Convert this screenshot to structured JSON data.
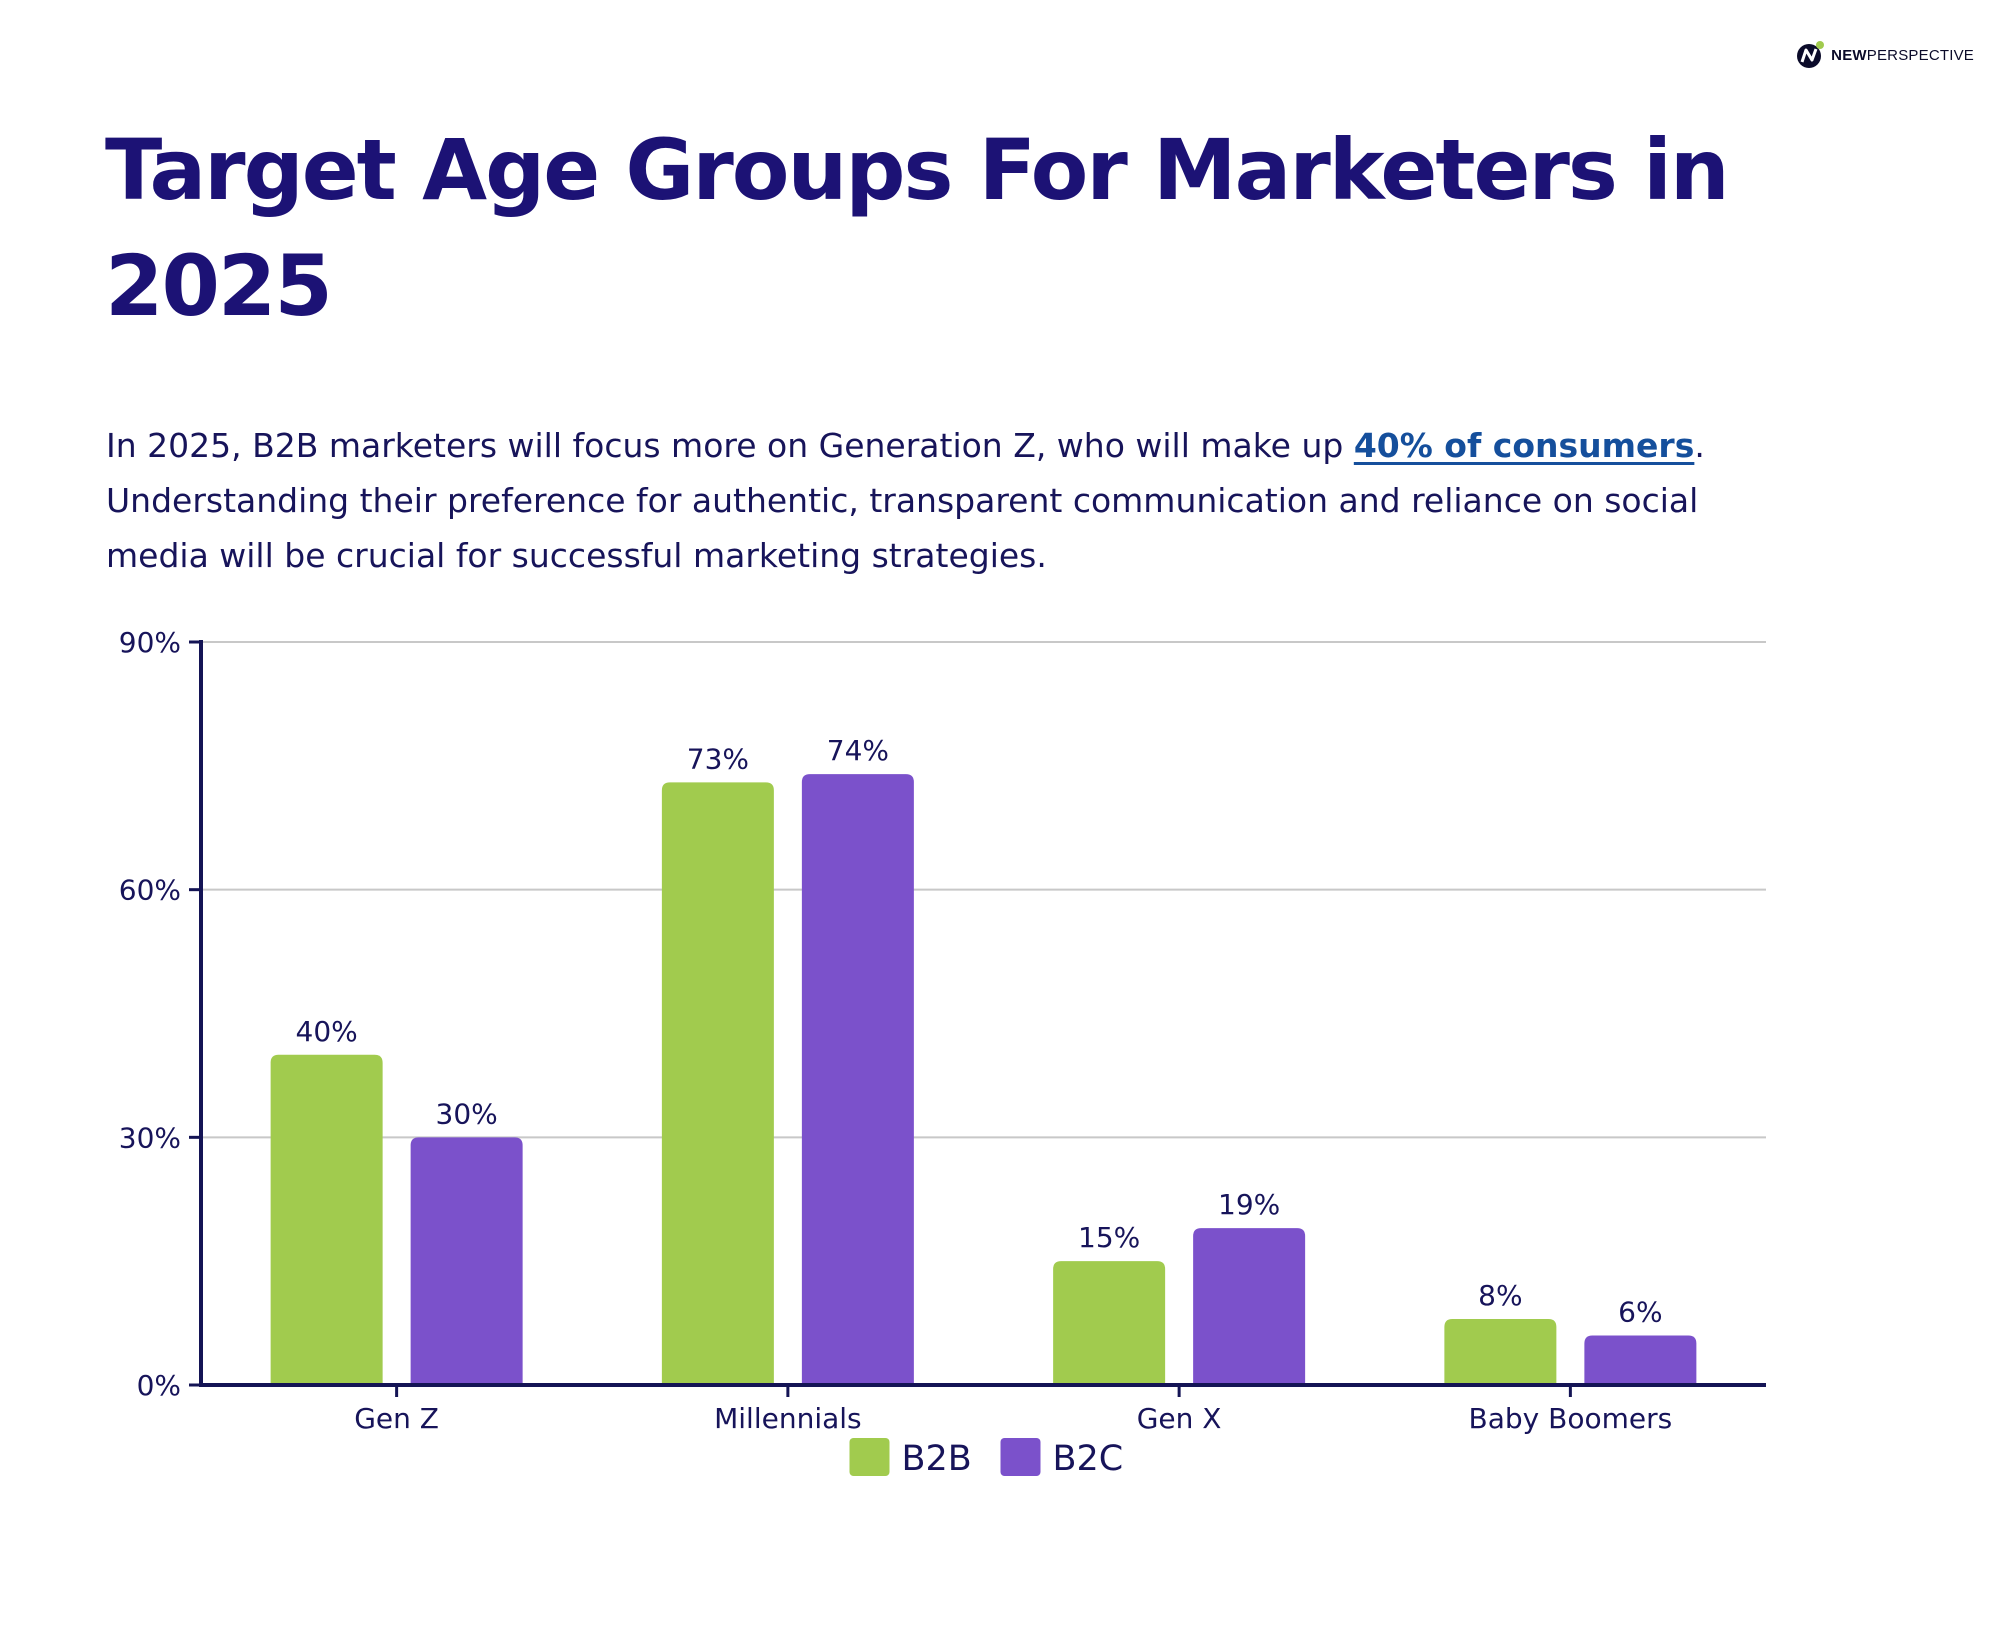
{
  "brand": {
    "bold_text": "NEW",
    "regular_text": "PERSPECTIVE"
  },
  "title": "Target Age Groups For Marketers in 2025",
  "intro": {
    "before_link": "In 2025, B2B marketers will focus more on Generation Z, who will make up ",
    "link_text": "40% of consumers",
    "after_link": ". Understanding their preference for authentic, transparent communication and reliance on social media will be crucial for successful marketing strategies."
  },
  "colors": {
    "title": "#1c1275",
    "body_text": "#17145a",
    "link": "#154f9c",
    "axis": "#141455",
    "grid": "#c8c8c8",
    "b2b": "#a1cb4e",
    "b2c": "#7b51cb"
  },
  "chart_data": {
    "type": "bar",
    "title": "",
    "xlabel": "",
    "ylabel": "",
    "categories": [
      "Gen Z",
      "Millennials",
      "Gen X",
      "Baby Boomers"
    ],
    "series": [
      {
        "name": "B2B",
        "values": [
          40,
          73,
          15,
          8
        ],
        "labels": [
          "40%",
          "73%",
          "15%",
          "8%"
        ],
        "color": "#a1cb4e"
      },
      {
        "name": "B2C",
        "values": [
          30,
          74,
          19,
          6
        ],
        "labels": [
          "30%",
          "74%",
          "19%",
          "6%"
        ],
        "color": "#7b51cb"
      }
    ],
    "ylim": [
      0,
      90
    ],
    "yticks": [
      0,
      30,
      60,
      90
    ],
    "ytick_labels": [
      "0%",
      "30%",
      "60%",
      "90%"
    ],
    "grid": true,
    "legend": "bottom-center"
  }
}
